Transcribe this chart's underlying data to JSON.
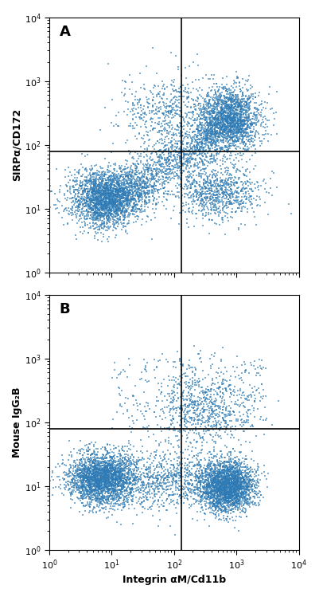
{
  "title_A": "A",
  "title_B": "B",
  "ylabel_A": "SIRPα/CD172",
  "ylabel_B": "Mouse IgG₂B",
  "xlabel": "Integrin αM/Cd11b",
  "xlim": [
    1,
    10000
  ],
  "ylim": [
    1,
    10000
  ],
  "gate_x": 130,
  "gate_y_A": 78,
  "gate_y_B": 78,
  "dot_color": "#2e7ab5",
  "dot_size": 1.2,
  "dot_alpha": 0.6,
  "bg_color": "#ffffff",
  "panel_label_fontsize": 13,
  "axis_label_fontsize": 9,
  "tick_label_fontsize": 8,
  "seed_A": 42,
  "seed_B": 123,
  "n_points_A": 7000,
  "n_points_B": 7000
}
